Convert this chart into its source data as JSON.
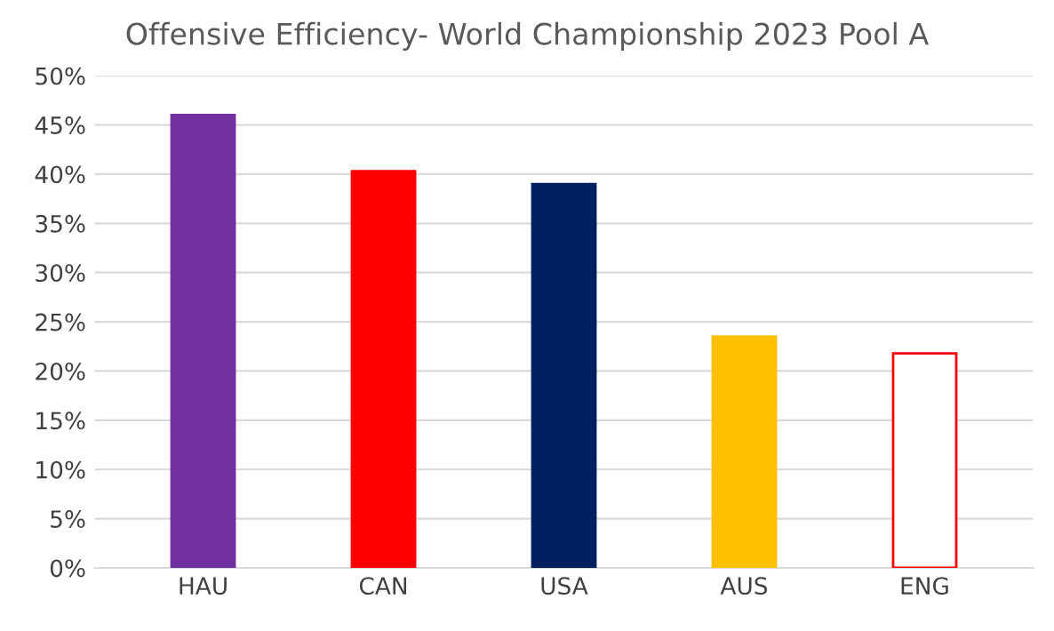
{
  "chart_data": {
    "type": "bar",
    "title": "Offensive Efficiency- World Championship 2023 Pool A",
    "categories": [
      "HAU",
      "CAN",
      "USA",
      "AUS",
      "ENG"
    ],
    "values": [
      46,
      40.3,
      39,
      23.5,
      21.8
    ],
    "colors": [
      "#7030a0",
      "#ff0000",
      "#002060",
      "#ffc000",
      "#ffffff"
    ],
    "ylim": [
      0,
      50
    ],
    "yticks": [
      {
        "value": 0,
        "label": "0%"
      },
      {
        "value": 5,
        "label": "5%"
      },
      {
        "value": 10,
        "label": "10%"
      },
      {
        "value": 15,
        "label": "15%"
      },
      {
        "value": 20,
        "label": "20%"
      },
      {
        "value": 25,
        "label": "25%"
      },
      {
        "value": 30,
        "label": "30%"
      },
      {
        "value": 35,
        "label": "35%"
      },
      {
        "value": 40,
        "label": "40%"
      },
      {
        "value": 45,
        "label": "45%"
      },
      {
        "value": 50,
        "label": "50%"
      }
    ],
    "grid": "y",
    "legend": false
  }
}
